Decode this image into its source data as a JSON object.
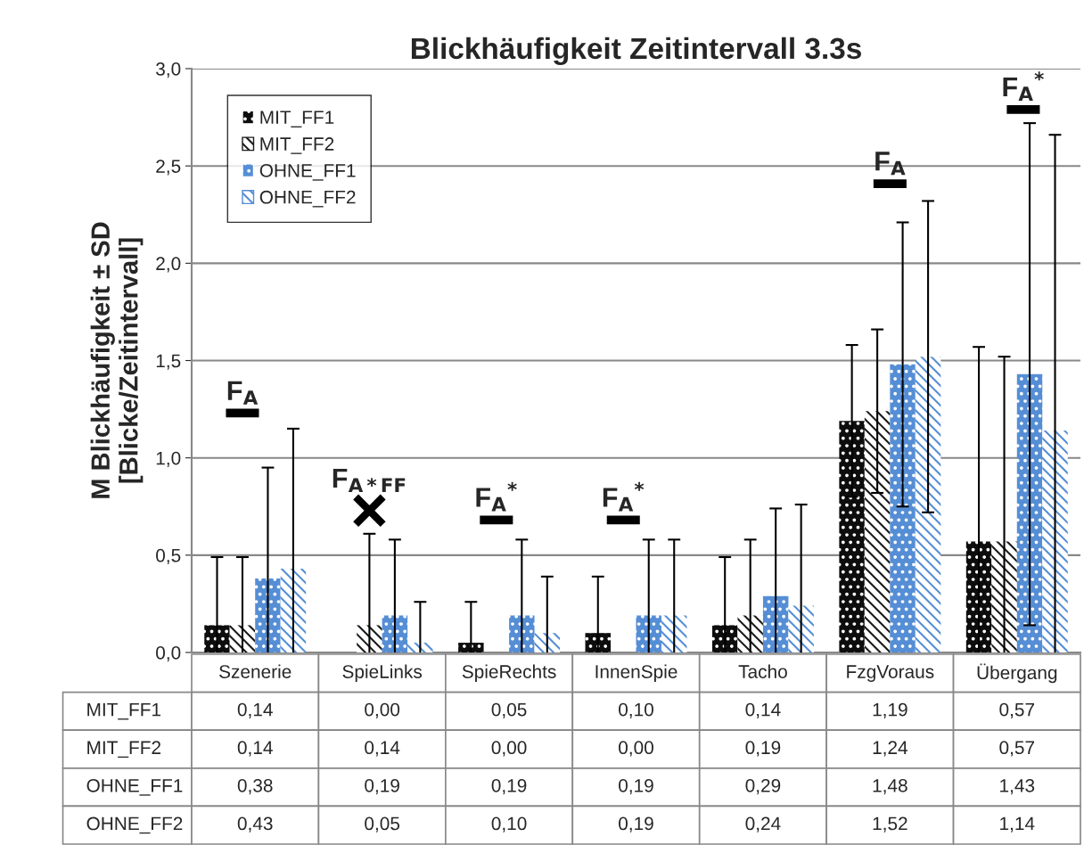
{
  "chart_data": {
    "type": "bar",
    "title": "Blickhäufigkeit Zeitintervall 3.3s",
    "ylabel": "M Blickhäufigkeit ± SD\n[Blicke/Zeitintervall]",
    "categories": [
      "Szenerie",
      "SpieLinks",
      "SpieRechts",
      "InnenSpie",
      "Tacho",
      "FzgVoraus",
      "Übergang"
    ],
    "series": [
      {
        "name": "MIT_FF1",
        "color": "#0d0d0d",
        "values": [
          0.14,
          0.0,
          0.05,
          0.1,
          0.14,
          1.19,
          0.57
        ],
        "errors": [
          0.35,
          null,
          0.21,
          0.29,
          0.35,
          0.39,
          1.0
        ],
        "value_labels": [
          "0,14",
          "0,00",
          "0,05",
          "0,10",
          "0,14",
          "1,19",
          "0,57"
        ]
      },
      {
        "name": "MIT_FF2",
        "color": "#1a1a1a",
        "values": [
          0.14,
          0.14,
          0.0,
          0.0,
          0.19,
          1.24,
          0.57
        ],
        "errors": [
          0.35,
          0.47,
          null,
          null,
          0.39,
          0.42,
          0.95
        ],
        "value_labels": [
          "0,14",
          "0,14",
          "0,00",
          "0,00",
          "0,19",
          "1,24",
          "0,57"
        ]
      },
      {
        "name": "OHNE_FF1",
        "color": "#558ed5",
        "values": [
          0.38,
          0.19,
          0.19,
          0.19,
          0.29,
          1.48,
          1.43
        ],
        "errors": [
          0.57,
          0.39,
          0.39,
          0.39,
          0.45,
          0.73,
          1.29
        ],
        "value_labels": [
          "0,38",
          "0,19",
          "0,19",
          "0,19",
          "0,29",
          "1,48",
          "1,43"
        ]
      },
      {
        "name": "OHNE_FF2",
        "color": "#558ed5",
        "values": [
          0.43,
          0.05,
          0.1,
          0.19,
          0.24,
          1.52,
          1.14
        ],
        "errors": [
          0.72,
          0.21,
          0.29,
          0.39,
          0.52,
          0.8,
          1.52
        ],
        "value_labels": [
          "0,43",
          "0,05",
          "0,10",
          "0,19",
          "0,24",
          "1,52",
          "1,14"
        ]
      }
    ],
    "ylim": [
      0,
      3
    ],
    "yticks": [
      {
        "value": 0,
        "label": "0,0"
      },
      {
        "value": 0.5,
        "label": "0,5"
      },
      {
        "value": 1,
        "label": "1,0"
      },
      {
        "value": 1.5,
        "label": "1,5"
      },
      {
        "value": 2,
        "label": "2,0"
      },
      {
        "value": 2.5,
        "label": "2,5"
      },
      {
        "value": 3,
        "label": "3,0"
      }
    ],
    "grid": "y",
    "legend": "top left",
    "annotations": [
      "F$_{A}$",
      "F$_{A*FF}$",
      "F$_{A}$$^{*}$",
      "F$_{A}$$^{*}$",
      "F$_{A}$",
      "F$_{A}$$^{*}$"
    ]
  }
}
